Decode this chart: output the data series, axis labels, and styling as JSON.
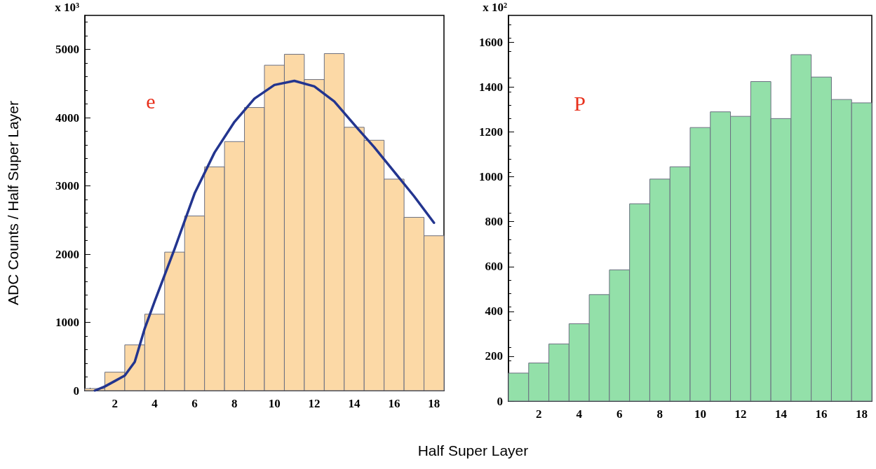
{
  "chart_data": [
    {
      "type": "histogram",
      "ylabel": "ADC Counts / Half Super Layer",
      "xlabel": "Half Super Layer",
      "color": "#fcd9a6",
      "bins": [
        0.5,
        1.5,
        2.5,
        3.5,
        4.5,
        5.5,
        6.5,
        7.5,
        8.5,
        9.5,
        10.5,
        11.5,
        12.5,
        13.5,
        14.5,
        15.5,
        16.5,
        17.5,
        18.5
      ],
      "values": [
        30,
        270,
        670,
        1120,
        2030,
        2560,
        3280,
        3650,
        4150,
        4770,
        4930,
        4560,
        4940,
        3860,
        3670,
        3100,
        2540,
        2270
      ],
      "series": [
        {
          "type": "line",
          "color": "#23358f",
          "x": [
            1,
            1.5,
            2,
            2.5,
            3,
            3.5,
            4,
            5,
            6,
            7,
            8,
            9,
            10,
            11,
            12,
            13,
            14,
            15,
            16,
            17,
            18
          ],
          "values": [
            0,
            60,
            140,
            220,
            420,
            910,
            1310,
            2080,
            2890,
            3490,
            3940,
            4280,
            4480,
            4540,
            4460,
            4240,
            3900,
            3570,
            3210,
            2850,
            2460
          ]
        }
      ],
      "xlim": [
        0.5,
        18.5
      ],
      "xticks": [
        2,
        4,
        6,
        8,
        10,
        12,
        14,
        16,
        18
      ],
      "ylim": [
        0,
        5500
      ],
      "yticks": [
        0,
        1000,
        2000,
        3000,
        4000,
        5000
      ],
      "grid": false,
      "annotations": [
        "x 10³",
        "e"
      ]
    },
    {
      "type": "histogram",
      "color": "#93e0a9",
      "bins": [
        0.5,
        1.5,
        2.5,
        3.5,
        4.5,
        5.5,
        6.5,
        7.5,
        8.5,
        9.5,
        10.5,
        11.5,
        12.5,
        13.5,
        14.5,
        15.5,
        16.5,
        17.5,
        18.5
      ],
      "values": [
        125,
        170,
        255,
        345,
        475,
        585,
        880,
        990,
        1045,
        1220,
        1290,
        1270,
        1425,
        1260,
        1545,
        1445,
        1345,
        1330
      ],
      "xlim": [
        0.5,
        18.5
      ],
      "xticks": [
        2,
        4,
        6,
        8,
        10,
        12,
        14,
        16,
        18
      ],
      "ylim": [
        0,
        1720
      ],
      "yticks": [
        0,
        200,
        400,
        600,
        800,
        1000,
        1200,
        1400,
        1600
      ],
      "grid": false,
      "annotations": [
        "x 10²",
        "P"
      ]
    }
  ]
}
